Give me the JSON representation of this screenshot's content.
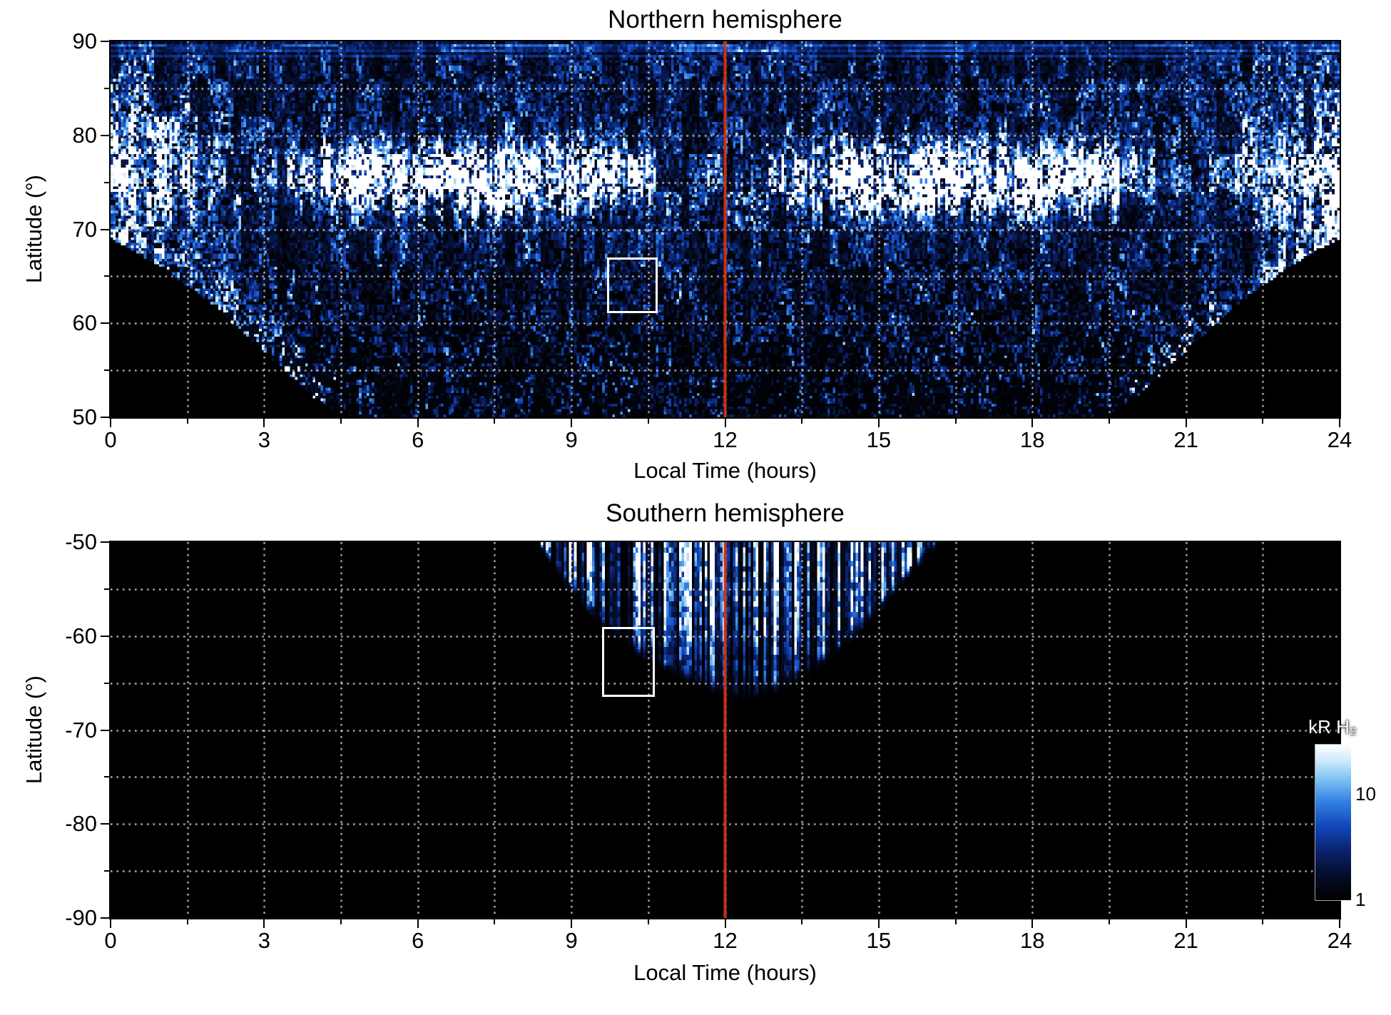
{
  "figure": {
    "background": "#ffffff",
    "text_color": "#000000"
  },
  "chart_data": [
    {
      "type": "heatmap",
      "hemisphere": "north",
      "title": "Northern hemisphere",
      "xlabel": "Local Time (hours)",
      "ylabel": "Latitude (°)",
      "xlim": [
        0,
        24
      ],
      "ylim": [
        50,
        90
      ],
      "x_ticks": [
        0,
        3,
        6,
        9,
        12,
        15,
        18,
        21,
        24
      ],
      "y_ticks": [
        90,
        80,
        70,
        60,
        50
      ],
      "grid": {
        "x_step": 1.5,
        "y_step": 5,
        "style": "dotted",
        "color": "#ffffff"
      },
      "noon_line": {
        "x": 12,
        "color": "#cc3311"
      },
      "highlight_box": {
        "lt_min": 9.7,
        "lt_max": 10.6,
        "lat_min": 61.5,
        "lat_max": 67.0,
        "color": "#ffffff"
      },
      "data_coverage_min_latitude_vs_lt": [
        [
          0,
          69
        ],
        [
          1,
          66
        ],
        [
          2,
          62
        ],
        [
          3,
          57
        ],
        [
          4,
          52
        ],
        [
          4.6,
          50
        ],
        [
          19.4,
          50
        ],
        [
          20,
          52
        ],
        [
          21,
          57
        ],
        [
          22,
          62
        ],
        [
          23,
          66
        ],
        [
          24,
          69
        ]
      ],
      "features": {
        "auroral_band_peak_latitude": 75.5,
        "auroral_band_bright_lt_ranges": [
          [
            4,
            10
          ],
          [
            13.5,
            19.5
          ]
        ],
        "bright_flank_lt_extent": 2.5,
        "polar_edge_latitude": 88.2,
        "units": "kR H2 emission, log color scale"
      }
    },
    {
      "type": "heatmap",
      "hemisphere": "south",
      "title": "Southern hemisphere",
      "xlabel": "Local Time (hours)",
      "ylabel": "Latitude (°)",
      "xlim": [
        0,
        24
      ],
      "ylim": [
        -90,
        -50
      ],
      "x_ticks": [
        0,
        3,
        6,
        9,
        12,
        15,
        18,
        21,
        24
      ],
      "y_ticks": [
        -50,
        -60,
        -70,
        -80,
        -90
      ],
      "grid": {
        "x_step": 1.5,
        "y_step": 5,
        "style": "dotted",
        "color": "#ffffff"
      },
      "noon_line": {
        "x": 12,
        "color": "#cc3311"
      },
      "highlight_box": {
        "lt_min": 9.6,
        "lt_max": 10.55,
        "lat_min": -66.0,
        "lat_max": -59.0,
        "color": "#ffffff"
      },
      "data_coverage_min_latitude_vs_lt": [
        [
          8.3,
          -50
        ],
        [
          8.8,
          -54
        ],
        [
          9.4,
          -58
        ],
        [
          10.0,
          -61
        ],
        [
          10.7,
          -63.5
        ],
        [
          11.5,
          -65.5
        ],
        [
          12.3,
          -67
        ],
        [
          13.0,
          -66
        ],
        [
          13.7,
          -64
        ],
        [
          14.4,
          -61
        ],
        [
          15.1,
          -57
        ],
        [
          15.7,
          -53
        ],
        [
          16.2,
          -50
        ]
      ],
      "features": {
        "fan_center_lt": 12.2,
        "units": "kR H2 emission, log color scale"
      }
    }
  ],
  "colorbar": {
    "label": "kR H₂",
    "scale": "log",
    "range_kR": [
      1,
      30
    ],
    "tick_values": [
      10,
      1
    ],
    "colormap_stops": [
      [
        0,
        "#000000"
      ],
      [
        0.16,
        "#050d2a"
      ],
      [
        0.3,
        "#0a2068"
      ],
      [
        0.48,
        "#1248bc"
      ],
      [
        0.64,
        "#3584e4"
      ],
      [
        0.79,
        "#86c7f2"
      ],
      [
        0.9,
        "#cfeafb"
      ],
      [
        1,
        "#ffffff"
      ]
    ]
  }
}
